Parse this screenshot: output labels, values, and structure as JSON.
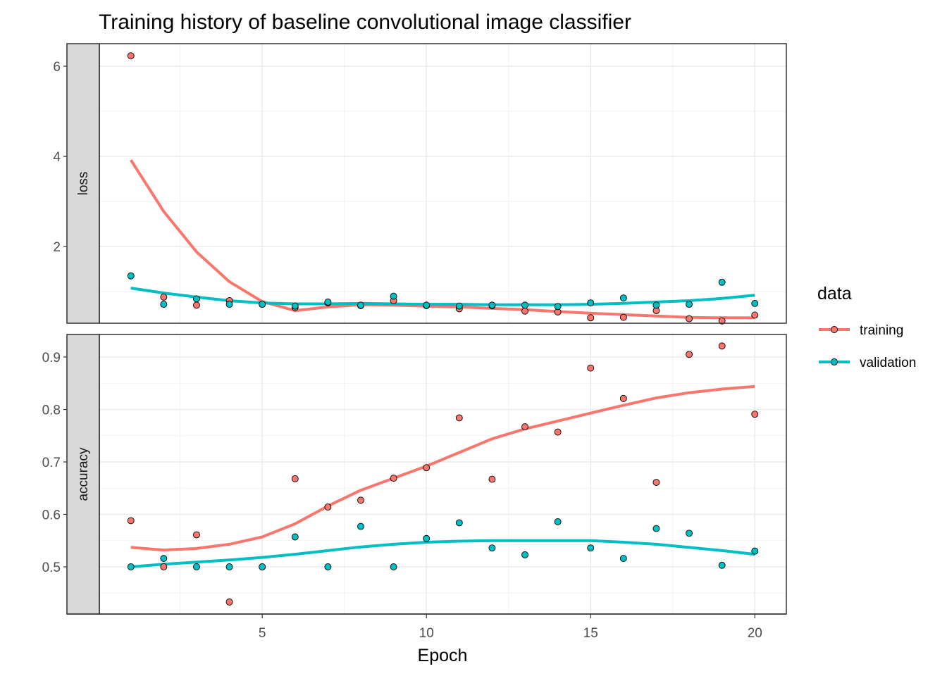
{
  "colors": {
    "training": "#F8766D",
    "validation": "#00BFC4",
    "strip_fill": "#d9d9d9"
  },
  "chart_data": {
    "type": "scatter",
    "title": "Training history of baseline convolutional image classifier",
    "xlabel": "Epoch",
    "ylabel": "",
    "xlim": [
      0.04,
      20.96
    ],
    "x_ticks": [
      5,
      10,
      15,
      20
    ],
    "grid": true,
    "legend": {
      "title": "data",
      "position": "right",
      "entries": [
        "training",
        "validation"
      ]
    },
    "x": [
      1,
      2,
      3,
      4,
      5,
      6,
      7,
      8,
      9,
      10,
      11,
      12,
      13,
      14,
      15,
      16,
      17,
      18,
      19,
      20
    ],
    "facets": [
      {
        "name": "loss",
        "ylim": [
          0.3,
          6.5
        ],
        "y_ticks": [
          2,
          4,
          6
        ],
        "series": [
          {
            "name": "training",
            "values": [
              6.23,
              0.88,
              0.7,
              0.8,
              0.72,
              0.65,
              0.75,
              0.69,
              0.8,
              0.69,
              0.62,
              0.69,
              0.57,
              0.55,
              0.42,
              0.43,
              0.58,
              0.4,
              0.35,
              0.48
            ],
            "smooth": [
              3.92,
              2.78,
              1.88,
              1.22,
              0.78,
              0.58,
              0.66,
              0.71,
              0.7,
              0.68,
              0.66,
              0.63,
              0.6,
              0.56,
              0.52,
              0.49,
              0.46,
              0.43,
              0.42,
              0.42
            ]
          },
          {
            "name": "validation",
            "values": [
              1.35,
              0.72,
              0.84,
              0.72,
              0.72,
              0.68,
              0.77,
              0.7,
              0.9,
              0.7,
              0.68,
              0.7,
              0.7,
              0.67,
              0.75,
              0.86,
              0.7,
              0.72,
              1.21,
              0.74
            ],
            "smooth": [
              1.08,
              0.97,
              0.88,
              0.8,
              0.75,
              0.73,
              0.73,
              0.74,
              0.73,
              0.72,
              0.72,
              0.71,
              0.71,
              0.71,
              0.72,
              0.74,
              0.77,
              0.8,
              0.85,
              0.92
            ]
          }
        ]
      },
      {
        "name": "accuracy",
        "ylim": [
          0.41,
          0.943
        ],
        "y_ticks": [
          0.5,
          0.6,
          0.7,
          0.8,
          0.9
        ],
        "series": [
          {
            "name": "training",
            "values": [
              0.588,
              0.5,
              0.561,
              0.433,
              0.5,
              0.668,
              0.614,
              0.627,
              0.669,
              0.689,
              0.784,
              0.667,
              0.767,
              0.757,
              0.879,
              0.821,
              0.661,
              0.905,
              0.921,
              0.791
            ],
            "smooth": [
              0.537,
              0.532,
              0.535,
              0.543,
              0.557,
              0.582,
              0.616,
              0.646,
              0.669,
              0.692,
              0.718,
              0.744,
              0.763,
              0.778,
              0.793,
              0.808,
              0.822,
              0.832,
              0.839,
              0.844
            ]
          },
          {
            "name": "validation",
            "values": [
              0.5,
              0.516,
              0.5,
              0.5,
              0.5,
              0.557,
              0.5,
              0.577,
              0.5,
              0.554,
              0.584,
              0.536,
              0.523,
              0.586,
              0.536,
              0.516,
              0.573,
              0.564,
              0.503,
              0.53
            ],
            "smooth": [
              0.5,
              0.505,
              0.509,
              0.513,
              0.518,
              0.524,
              0.531,
              0.538,
              0.543,
              0.547,
              0.549,
              0.55,
              0.55,
              0.55,
              0.55,
              0.547,
              0.543,
              0.537,
              0.531,
              0.524
            ]
          }
        ]
      }
    ]
  }
}
